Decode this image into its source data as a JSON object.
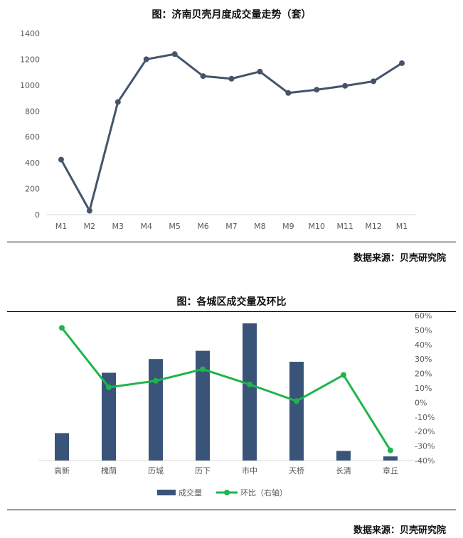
{
  "charts": [
    {
      "title": "图：济南贝壳月度成交量走势（套）",
      "source": "数据来源：贝壳研究院"
    },
    {
      "title": "图：各城区成交量及环比",
      "source": "数据来源：贝壳研究院"
    }
  ],
  "chart_data": [
    {
      "type": "line",
      "categories": [
        "M1",
        "M2",
        "M3",
        "M4",
        "M5",
        "M6",
        "M7",
        "M8",
        "M9",
        "M10",
        "M11",
        "M12",
        "M1"
      ],
      "series": [
        {
          "values": [
            425,
            30,
            870,
            1200,
            1240,
            1070,
            1050,
            1105,
            940,
            965,
            995,
            1030,
            1170
          ],
          "color": "#44546a"
        }
      ],
      "ylim": [
        0,
        1400
      ],
      "yticks": [
        0,
        200,
        400,
        600,
        800,
        1000,
        1200,
        1400
      ],
      "grid": false
    },
    {
      "type": "bar",
      "categories": [
        "高新",
        "槐荫",
        "历城",
        "历下",
        "市中",
        "天桥",
        "长清",
        "章丘"
      ],
      "series": [
        {
          "name": "成交量",
          "type": "bar",
          "axis": "left",
          "values": [
            0.2,
            0.64,
            0.74,
            0.8,
            1.0,
            0.72,
            0.07,
            0.03
          ],
          "color": "#3a5479"
        },
        {
          "name": "环比（右轴）",
          "type": "line",
          "axis": "right",
          "values": [
            51.5,
            10.5,
            15.0,
            23.0,
            12.5,
            1.0,
            19.0,
            -33.0
          ],
          "color": "#1eb54a"
        }
      ],
      "y2lim": [
        -40,
        60
      ],
      "y2ticks": [
        "60%",
        "50%",
        "40%",
        "30%",
        "20%",
        "10%",
        "0%",
        "-10%",
        "-20%",
        "-30%",
        "-40%"
      ],
      "legend": "bottom"
    }
  ]
}
